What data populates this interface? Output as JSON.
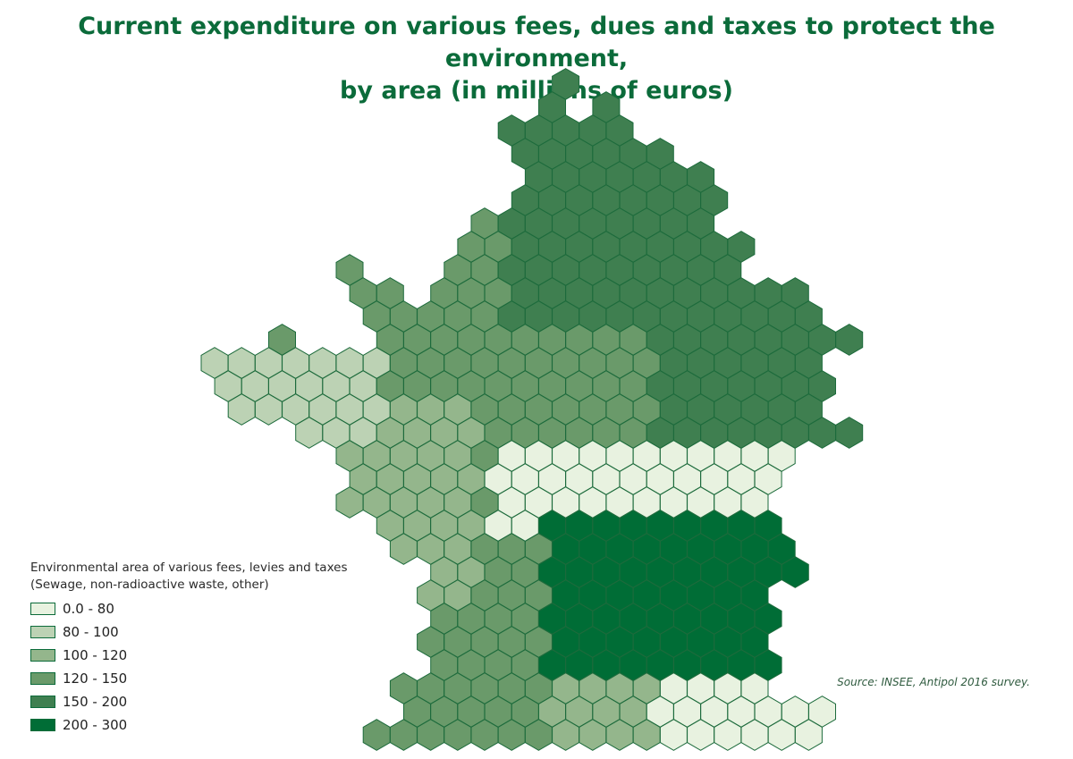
{
  "title": {
    "line1": "Current expenditure on various fees, dues and taxes to protect the environment,",
    "line2": "by area (in millions of euros)"
  },
  "legend": {
    "heading_line1": "Environmental area of various fees, levies and taxes",
    "heading_line2": "(Sewage, non-radioactive waste, other)",
    "items": [
      {
        "label": "0.0 - 80",
        "color": "#e8f2e0"
      },
      {
        "label": "80 - 100",
        "color": "#bcd2b4"
      },
      {
        "label": "100 - 120",
        "color": "#94b68c"
      },
      {
        "label": "120 - 150",
        "color": "#6a9a6a"
      },
      {
        "label": "150 - 200",
        "color": "#3f7f50"
      },
      {
        "label": "200 - 300",
        "color": "#006d36"
      }
    ]
  },
  "source": "Source: INSEE, Antipol 2016 survey.",
  "map_data": {
    "type": "hexbin-choropleth",
    "region": "France",
    "classes": [
      "0.0 - 80",
      "80 - 100",
      "100 - 120",
      "120 - 150",
      "150 - 200",
      "200 - 300"
    ]
  }
}
